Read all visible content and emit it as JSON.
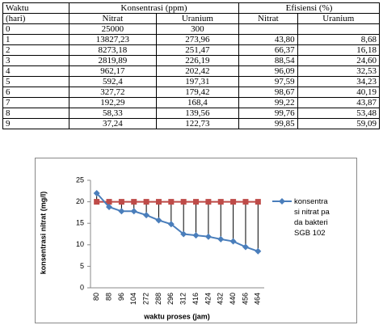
{
  "table": {
    "header": [
      "Waktu",
      "Konsentrasi (ppm)",
      "Efisiensi (%)"
    ],
    "subheader": [
      "(hari)",
      "Nitrat",
      "Uranium",
      "Nitrat",
      "Uranium"
    ],
    "rows": [
      [
        "0",
        "25000",
        "300"
      ],
      [
        "1",
        "13827,23",
        "273,96",
        "43,80",
        "8,68"
      ],
      [
        "2",
        "8273,18",
        "251,47",
        "66,37",
        "16,18"
      ],
      [
        "3",
        "2819,89",
        "226,19",
        "88,54",
        "24,60"
      ],
      [
        "4",
        "962,17",
        "202,42",
        "96,09",
        "32,53"
      ],
      [
        "5",
        "592,4",
        "197,31",
        "97,59",
        "34,23"
      ],
      [
        "6",
        "327,72",
        "179,42",
        "98,67",
        "40,19"
      ],
      [
        "7",
        "192,29",
        "168,4",
        "99,22",
        "43,87"
      ],
      [
        "8",
        "58,33",
        "139,56",
        "99,76",
        "53,48"
      ],
      [
        "9",
        "37,24",
        "122,73",
        "99,85",
        "59,09"
      ]
    ]
  },
  "chart_data": {
    "type": "line",
    "x_label": "waktu proses (jam)",
    "y_label": "konsentrasi nitrat (mg/l)",
    "categories": [
      "80",
      "88",
      "96",
      "104",
      "272",
      "288",
      "296",
      "312",
      "416",
      "424",
      "432",
      "440",
      "456",
      "464"
    ],
    "series": [
      {
        "name": "konsentrasi nitrat pada bakteri SGB 102",
        "color": "#4a7ebb",
        "marker": "diamond",
        "values": [
          22,
          18.8,
          17.8,
          17.8,
          16.9,
          15.7,
          14.8,
          12.5,
          12.2,
          11.9,
          11.3,
          10.8,
          9.5,
          8.5
        ]
      },
      {
        "color": "#be4b48",
        "marker": "square",
        "values": [
          20,
          20,
          20,
          20,
          20,
          20,
          20,
          20,
          20,
          20,
          20,
          20,
          20,
          20
        ]
      }
    ],
    "ylim": [
      0,
      25
    ],
    "yticks": [
      0,
      5,
      10,
      15,
      20,
      25
    ],
    "drop_lines": true
  }
}
